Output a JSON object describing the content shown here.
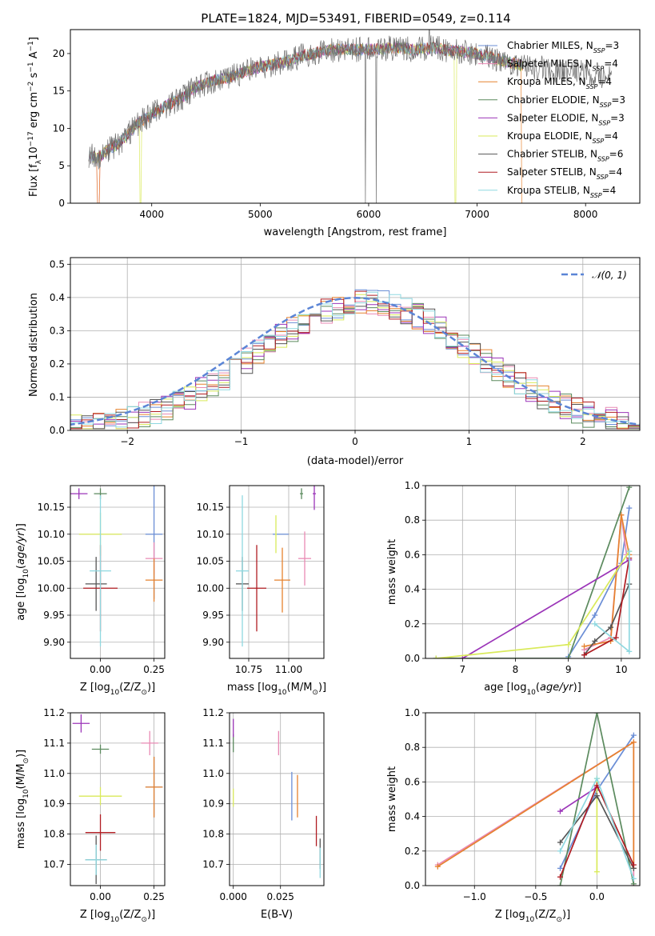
{
  "figure": {
    "title": "PLATE=1824, MJD=53491, FIBERID=0549, z=0.114"
  },
  "series_models": [
    {
      "name": "Chabrier MILES, N_SSP=3",
      "label_main": "Chabrier MILES, N",
      "label_sub": "SSP",
      "label_tail": "=3",
      "color": "#6b8ed6"
    },
    {
      "name": "Salpeter MILES, N_SSP=4",
      "label_main": "Salpeter MILES, N",
      "label_sub": "SSP",
      "label_tail": "=4",
      "color": "#e98ab4"
    },
    {
      "name": "Kroupa MILES, N_SSP=4",
      "label_main": "Kroupa MILES, N",
      "label_sub": "SSP",
      "label_tail": "=4",
      "color": "#e6822e"
    },
    {
      "name": "Chabrier ELODIE, N_SSP=3",
      "label_main": "Chabrier ELODIE, N",
      "label_sub": "SSP",
      "label_tail": "=3",
      "color": "#5b8a5e"
    },
    {
      "name": "Salpeter ELODIE, N_SSP=3",
      "label_main": "Salpeter ELODIE, N",
      "label_sub": "SSP",
      "label_tail": "=3",
      "color": "#9b34b8"
    },
    {
      "name": "Kroupa ELODIE, N_SSP=4",
      "label_main": "Kroupa ELODIE, N",
      "label_sub": "SSP",
      "label_tail": "=4",
      "color": "#d9ea5a"
    },
    {
      "name": "Chabrier STELIB, N_SSP=6",
      "label_main": "Chabrier STELIB, N",
      "label_sub": "SSP",
      "label_tail": "=6",
      "color": "#555555"
    },
    {
      "name": "Salpeter STELIB, N_SSP=4",
      "label_main": "Salpeter STELIB, N",
      "label_sub": "SSP",
      "label_tail": "=4",
      "color": "#b01c22"
    },
    {
      "name": "Kroupa STELIB, N_SSP=4",
      "label_main": "Kroupa STELIB, N",
      "label_sub": "SSP",
      "label_tail": "=4",
      "color": "#8fd8e0"
    }
  ],
  "chart_data": [
    {
      "id": "spectrum",
      "type": "line",
      "xlabel": "wavelength [Angstrom, rest frame]",
      "ylabel": "Flux [f_λ 10^-17 erg cm^-2 s^-1 A^-1]",
      "ylabel_parts": {
        "a": "Flux [f",
        "b": "λ",
        "c": "10",
        "d": "−17",
        "e": " erg cm",
        "f": "−2",
        "g": " s",
        "h": "−1",
        "i": " A",
        "j": "−1",
        "k": "]"
      },
      "xlim": [
        3250,
        8500
      ],
      "ylim": [
        0,
        23.2
      ],
      "xticks": [
        4000,
        5000,
        6000,
        7000,
        8000
      ],
      "yticks": [
        0,
        5,
        10,
        15,
        20
      ],
      "data_x": [
        3400,
        3500,
        3600,
        3700,
        3800,
        3900,
        4000,
        4100,
        4200,
        4300,
        4400,
        4500,
        4600,
        4700,
        4800,
        4900,
        5000,
        5100,
        5200,
        5300,
        5400,
        5500,
        5600,
        5700,
        5800,
        5900,
        6000,
        6100,
        6200,
        6300,
        6400,
        6500,
        6600,
        6700,
        6800,
        6900,
        7000,
        7100,
        7200,
        7300,
        7400,
        7500,
        7600,
        7700,
        7800,
        7900,
        8000,
        8100,
        8200
      ],
      "data_y": [
        6.5,
        6.0,
        7.2,
        8.0,
        9.5,
        11.0,
        11.8,
        12.8,
        13.5,
        14.2,
        15.5,
        16.0,
        16.5,
        16.8,
        17.2,
        17.8,
        18.2,
        18.5,
        18.8,
        19.2,
        19.8,
        20.0,
        20.4,
        20.5,
        20.6,
        20.5,
        20.6,
        20.6,
        20.7,
        20.8,
        20.5,
        20.6,
        20.8,
        20.5,
        20.3,
        20.2,
        20.0,
        19.6,
        19.2,
        18.8,
        18.5,
        18.2,
        18.0,
        17.8,
        17.6,
        17.6,
        17.3,
        17.1,
        17.0
      ],
      "model_dropouts_x": [
        3510,
        3900,
        6800,
        7420
      ]
    },
    {
      "id": "residuals",
      "type": "histogram",
      "xlabel": "(data-model)/error",
      "ylabel": "Normed distribution",
      "xlim": [
        -2.5,
        2.5
      ],
      "ylim": [
        0,
        0.52
      ],
      "xticks": [
        -2,
        -1,
        0,
        1,
        2
      ],
      "xtick_labels": [
        "−2",
        "−1",
        "0",
        "1",
        "2"
      ],
      "yticks": [
        0.0,
        0.1,
        0.2,
        0.3,
        0.4,
        0.5
      ],
      "ytick_labels": [
        "0.0",
        "0.1",
        "0.2",
        "0.3",
        "0.4",
        "0.5"
      ],
      "reference_curve": "N(0,1)",
      "legend_label": "𝒩(0, 1)",
      "reference_color": "#5b85d6",
      "bin_width": 0.1
    },
    {
      "id": "age_vs_Z",
      "type": "scatter",
      "xlabel": "Z [log10(Z/Z⊙)]",
      "xlabel_parts": {
        "a": "Z [log",
        "b": "10",
        "c": "(Z/Z",
        "d": "⊙",
        "e": ")]"
      },
      "ylabel": "age [log10(age/yr)]",
      "xlim": [
        -0.14,
        0.3
      ],
      "ylim": [
        9.87,
        10.19
      ],
      "xticks": [
        0.0,
        0.25
      ],
      "xtick_labels": [
        "0.00",
        "0.25"
      ],
      "yticks": [
        9.9,
        9.95,
        10.0,
        10.05,
        10.1,
        10.15
      ],
      "ytick_labels": [
        "9.90",
        "9.95",
        "10.00",
        "10.05",
        "10.10",
        "10.15"
      ],
      "points": [
        {
          "model": 0,
          "x": 0.25,
          "y": 10.1,
          "xerr": 0.04,
          "yerr": 0.12
        },
        {
          "model": 1,
          "x": 0.25,
          "y": 10.055,
          "xerr": 0.04,
          "yerr": 0.03
        },
        {
          "model": 2,
          "x": 0.25,
          "y": 10.015,
          "xerr": 0.04,
          "yerr": 0.04
        },
        {
          "model": 3,
          "x": 0.0,
          "y": 10.175,
          "xerr": 0.03,
          "yerr": 0.01
        },
        {
          "model": 4,
          "x": -0.1,
          "y": 10.175,
          "xerr": 0.04,
          "yerr": 0.01
        },
        {
          "model": 5,
          "x": 0.0,
          "y": 10.1,
          "xerr": 0.1,
          "yerr": 0.04
        },
        {
          "model": 6,
          "x": -0.02,
          "y": 10.008,
          "xerr": 0.05,
          "yerr": 0.05
        },
        {
          "model": 7,
          "x": 0.0,
          "y": 10.0,
          "xerr": 0.08,
          "yerr": 0.08
        },
        {
          "model": 8,
          "x": 0.0,
          "y": 10.032,
          "xerr": 0.05,
          "yerr": 0.14
        }
      ]
    },
    {
      "id": "age_vs_mass",
      "type": "scatter",
      "xlabel": "mass [log10(M/M⊙)]",
      "xlabel_parts": {
        "a": "mass [log",
        "b": "10",
        "c": "(M/M",
        "d": "⊙",
        "e": ")]"
      },
      "ylabel": "",
      "xlim": [
        10.63,
        11.22
      ],
      "ylim": [
        9.87,
        10.19
      ],
      "xticks": [
        10.75,
        11.0
      ],
      "xtick_labels": [
        "10.75",
        "11.00"
      ],
      "yticks": [
        9.9,
        9.95,
        10.0,
        10.05,
        10.1,
        10.15
      ],
      "ytick_labels": [
        "9.90",
        "9.95",
        "10.00",
        "10.05",
        "10.10",
        "10.15"
      ],
      "points": [
        {
          "model": 0,
          "x": 10.95,
          "y": 10.1,
          "xerr": 0.05,
          "yerr": 0.0
        },
        {
          "model": 1,
          "x": 11.1,
          "y": 10.055,
          "xerr": 0.04,
          "yerr": 0.05
        },
        {
          "model": 2,
          "x": 10.96,
          "y": 10.015,
          "xerr": 0.05,
          "yerr": 0.06
        },
        {
          "model": 3,
          "x": 11.08,
          "y": 10.175,
          "xerr": 0.01,
          "yerr": 0.01
        },
        {
          "model": 4,
          "x": 11.16,
          "y": 10.175,
          "xerr": 0.01,
          "yerr": 0.03
        },
        {
          "model": 5,
          "x": 10.92,
          "y": 10.1,
          "xerr": 0.005,
          "yerr": 0.035
        },
        {
          "model": 6,
          "x": 10.71,
          "y": 10.008,
          "xerr": 0.04,
          "yerr": 0.05
        },
        {
          "model": 7,
          "x": 10.8,
          "y": 10.0,
          "xerr": 0.06,
          "yerr": 0.08
        },
        {
          "model": 8,
          "x": 10.71,
          "y": 10.032,
          "xerr": 0.04,
          "yerr": 0.14
        }
      ]
    },
    {
      "id": "mass_weight_vs_age",
      "type": "line",
      "xlabel": "age [log10(age/yr)]",
      "xlabel_parts": {
        "a": "age  [log",
        "b": "10",
        "c": "(",
        "d": "age/yr",
        "e": ")]"
      },
      "ylabel": "mass weight",
      "xlim": [
        6.3,
        10.35
      ],
      "ylim": [
        0,
        1.0
      ],
      "xticks": [
        7,
        8,
        9,
        10
      ],
      "xtick_labels": [
        "7",
        "8",
        "9",
        "10"
      ],
      "yticks": [
        0.0,
        0.2,
        0.4,
        0.6,
        0.8,
        1.0
      ],
      "ytick_labels": [
        "0.0",
        "0.2",
        "0.4",
        "0.6",
        "0.8",
        "1.0"
      ],
      "series": [
        {
          "model": 0,
          "points": [
            [
              9.0,
              0.01
            ],
            [
              9.5,
              0.25
            ],
            [
              10.0,
              0.55
            ],
            [
              10.15,
              0.87
            ]
          ]
        },
        {
          "model": 1,
          "points": [
            [
              9.3,
              0.05
            ],
            [
              9.8,
              0.12
            ],
            [
              10.0,
              0.83
            ],
            [
              10.1,
              0.6
            ]
          ]
        },
        {
          "model": 2,
          "points": [
            [
              9.3,
              0.07
            ],
            [
              9.8,
              0.1
            ],
            [
              10.0,
              0.83
            ],
            [
              10.15,
              0.6
            ]
          ]
        },
        {
          "model": 3,
          "points": [
            [
              6.5,
              0.0
            ],
            [
              9.0,
              0.0
            ],
            [
              10.15,
              0.99
            ]
          ]
        },
        {
          "model": 4,
          "points": [
            [
              7.0,
              0.0
            ],
            [
              10.15,
              0.57
            ]
          ]
        },
        {
          "model": 5,
          "points": [
            [
              6.5,
              0.0
            ],
            [
              9.0,
              0.08
            ],
            [
              10.15,
              0.62
            ]
          ]
        },
        {
          "model": 6,
          "points": [
            [
              9.3,
              0.02
            ],
            [
              9.5,
              0.1
            ],
            [
              9.8,
              0.18
            ],
            [
              10.15,
              0.43
            ]
          ]
        },
        {
          "model": 7,
          "points": [
            [
              9.3,
              0.02
            ],
            [
              9.9,
              0.12
            ],
            [
              10.15,
              0.58
            ]
          ]
        },
        {
          "model": 8,
          "points": [
            [
              9.5,
              0.2
            ],
            [
              10.15,
              0.04
            ],
            [
              10.15,
              0.62
            ]
          ]
        }
      ]
    },
    {
      "id": "mass_vs_Z",
      "type": "scatter",
      "xlabel": "Z [log10(Z/Z⊙)]",
      "xlabel_parts": {
        "a": "Z [log",
        "b": "10",
        "c": "(Z/Z",
        "d": "⊙",
        "e": ")]"
      },
      "ylabel": "mass [log10(M/M⊙)]",
      "ylabel_parts": {
        "a": "mass [log",
        "b": "10",
        "c": "(M/M",
        "d": "⊙",
        "e": ")]"
      },
      "xlim": [
        -0.14,
        0.3
      ],
      "ylim": [
        10.63,
        11.2
      ],
      "xticks": [
        0.0,
        0.25
      ],
      "xtick_labels": [
        "0.00",
        "0.25"
      ],
      "yticks": [
        10.7,
        10.8,
        10.9,
        11.0,
        11.1,
        11.2
      ],
      "ytick_labels": [
        "10.7",
        "10.8",
        "10.9",
        "11.0",
        "11.1",
        "11.2"
      ],
      "points": [
        {
          "model": 0,
          "x": 0.25,
          "y": 10.955,
          "xerr": 0.04,
          "yerr": 0.1
        },
        {
          "model": 1,
          "x": 0.23,
          "y": 11.1,
          "xerr": 0.04,
          "yerr": 0.04
        },
        {
          "model": 2,
          "x": 0.25,
          "y": 10.955,
          "xerr": 0.04,
          "yerr": 0.1
        },
        {
          "model": 3,
          "x": 0.0,
          "y": 11.08,
          "xerr": 0.04,
          "yerr": 0.015
        },
        {
          "model": 4,
          "x": -0.09,
          "y": 11.165,
          "xerr": 0.04,
          "yerr": 0.03
        },
        {
          "model": 5,
          "x": 0.0,
          "y": 10.925,
          "xerr": 0.1,
          "yerr": 0.03
        },
        {
          "model": 6,
          "x": -0.02,
          "y": 10.715,
          "xerr": 0.05,
          "yerr": 0.08
        },
        {
          "model": 7,
          "x": 0.0,
          "y": 10.805,
          "xerr": 0.07,
          "yerr": 0.06
        },
        {
          "model": 8,
          "x": -0.02,
          "y": 10.715,
          "xerr": 0.05,
          "yerr": 0.05
        }
      ]
    },
    {
      "id": "mass_vs_EBV",
      "type": "scatter",
      "xlabel": "E(B-V)",
      "ylabel": "",
      "xlim": [
        -0.002,
        0.048
      ],
      "ylim": [
        10.63,
        11.2
      ],
      "xticks": [
        0.0,
        0.025
      ],
      "xtick_labels": [
        "0.000",
        "0.025"
      ],
      "yticks": [
        10.7,
        10.8,
        10.9,
        11.0,
        11.1,
        11.2
      ],
      "ytick_labels": [
        "10.7",
        "10.8",
        "10.9",
        "11.0",
        "11.1",
        "11.2"
      ],
      "points": [
        {
          "model": 0,
          "x": 0.031,
          "y": 10.925,
          "xerr": 0.0,
          "yerr": 0.08
        },
        {
          "model": 1,
          "x": 0.024,
          "y": 11.1,
          "xerr": 0.0,
          "yerr": 0.04
        },
        {
          "model": 2,
          "x": 0.034,
          "y": 10.925,
          "xerr": 0.0,
          "yerr": 0.07
        },
        {
          "model": 3,
          "x": 0.0,
          "y": 11.1,
          "xerr": 0.0,
          "yerr": 0.03
        },
        {
          "model": 4,
          "x": 0.0,
          "y": 11.15,
          "xerr": 0.0,
          "yerr": 0.03
        },
        {
          "model": 5,
          "x": 0.0,
          "y": 10.92,
          "xerr": 0.0,
          "yerr": 0.03
        },
        {
          "model": 6,
          "x": 0.046,
          "y": 10.735,
          "xerr": 0.0,
          "yerr": 0.05
        },
        {
          "model": 7,
          "x": 0.044,
          "y": 10.81,
          "xerr": 0.0,
          "yerr": 0.05
        },
        {
          "model": 8,
          "x": 0.046,
          "y": 10.705,
          "xerr": 0.0,
          "yerr": 0.05
        }
      ]
    },
    {
      "id": "mass_weight_vs_Z",
      "type": "line",
      "xlabel": "Z [log10(Z/Z⊙)]",
      "xlabel_parts": {
        "a": "Z [log",
        "b": "10",
        "c": "(Z/Z",
        "d": "⊙",
        "e": ")]"
      },
      "ylabel": "mass weight",
      "xlim": [
        -1.4,
        0.35
      ],
      "ylim": [
        0,
        1.0
      ],
      "xticks": [
        -1.0,
        -0.5,
        0.0
      ],
      "xtick_labels": [
        "−1.0",
        "−0.5",
        "0.0"
      ],
      "yticks": [
        0.0,
        0.2,
        0.4,
        0.6,
        0.8,
        1.0
      ],
      "ytick_labels": [
        "0.0",
        "0.2",
        "0.4",
        "0.6",
        "0.8",
        "1.0"
      ],
      "series": [
        {
          "model": 0,
          "points": [
            [
              -0.3,
              0.1
            ],
            [
              0.0,
              0.55
            ],
            [
              0.3,
              0.87
            ]
          ]
        },
        {
          "model": 1,
          "points": [
            [
              -1.3,
              0.12
            ],
            [
              0.3,
              0.83
            ],
            [
              0.3,
              0.0
            ]
          ]
        },
        {
          "model": 2,
          "points": [
            [
              -1.3,
              0.11
            ],
            [
              0.3,
              0.83
            ],
            [
              0.3,
              0.1
            ]
          ]
        },
        {
          "model": 3,
          "points": [
            [
              -0.3,
              0.0
            ],
            [
              0.0,
              1.0
            ],
            [
              0.3,
              0.01
            ]
          ]
        },
        {
          "model": 4,
          "points": [
            [
              -0.3,
              0.43
            ],
            [
              0.0,
              0.57
            ]
          ]
        },
        {
          "model": 5,
          "points": [
            [
              0.0,
              0.08
            ],
            [
              0.0,
              0.62
            ]
          ]
        },
        {
          "model": 6,
          "points": [
            [
              -0.3,
              0.25
            ],
            [
              0.0,
              0.52
            ],
            [
              0.3,
              0.1
            ]
          ]
        },
        {
          "model": 7,
          "points": [
            [
              -0.3,
              0.05
            ],
            [
              0.0,
              0.58
            ],
            [
              0.3,
              0.12
            ]
          ]
        },
        {
          "model": 8,
          "points": [
            [
              -0.3,
              0.2
            ],
            [
              0.0,
              0.62
            ],
            [
              0.3,
              0.04
            ]
          ]
        }
      ]
    }
  ]
}
